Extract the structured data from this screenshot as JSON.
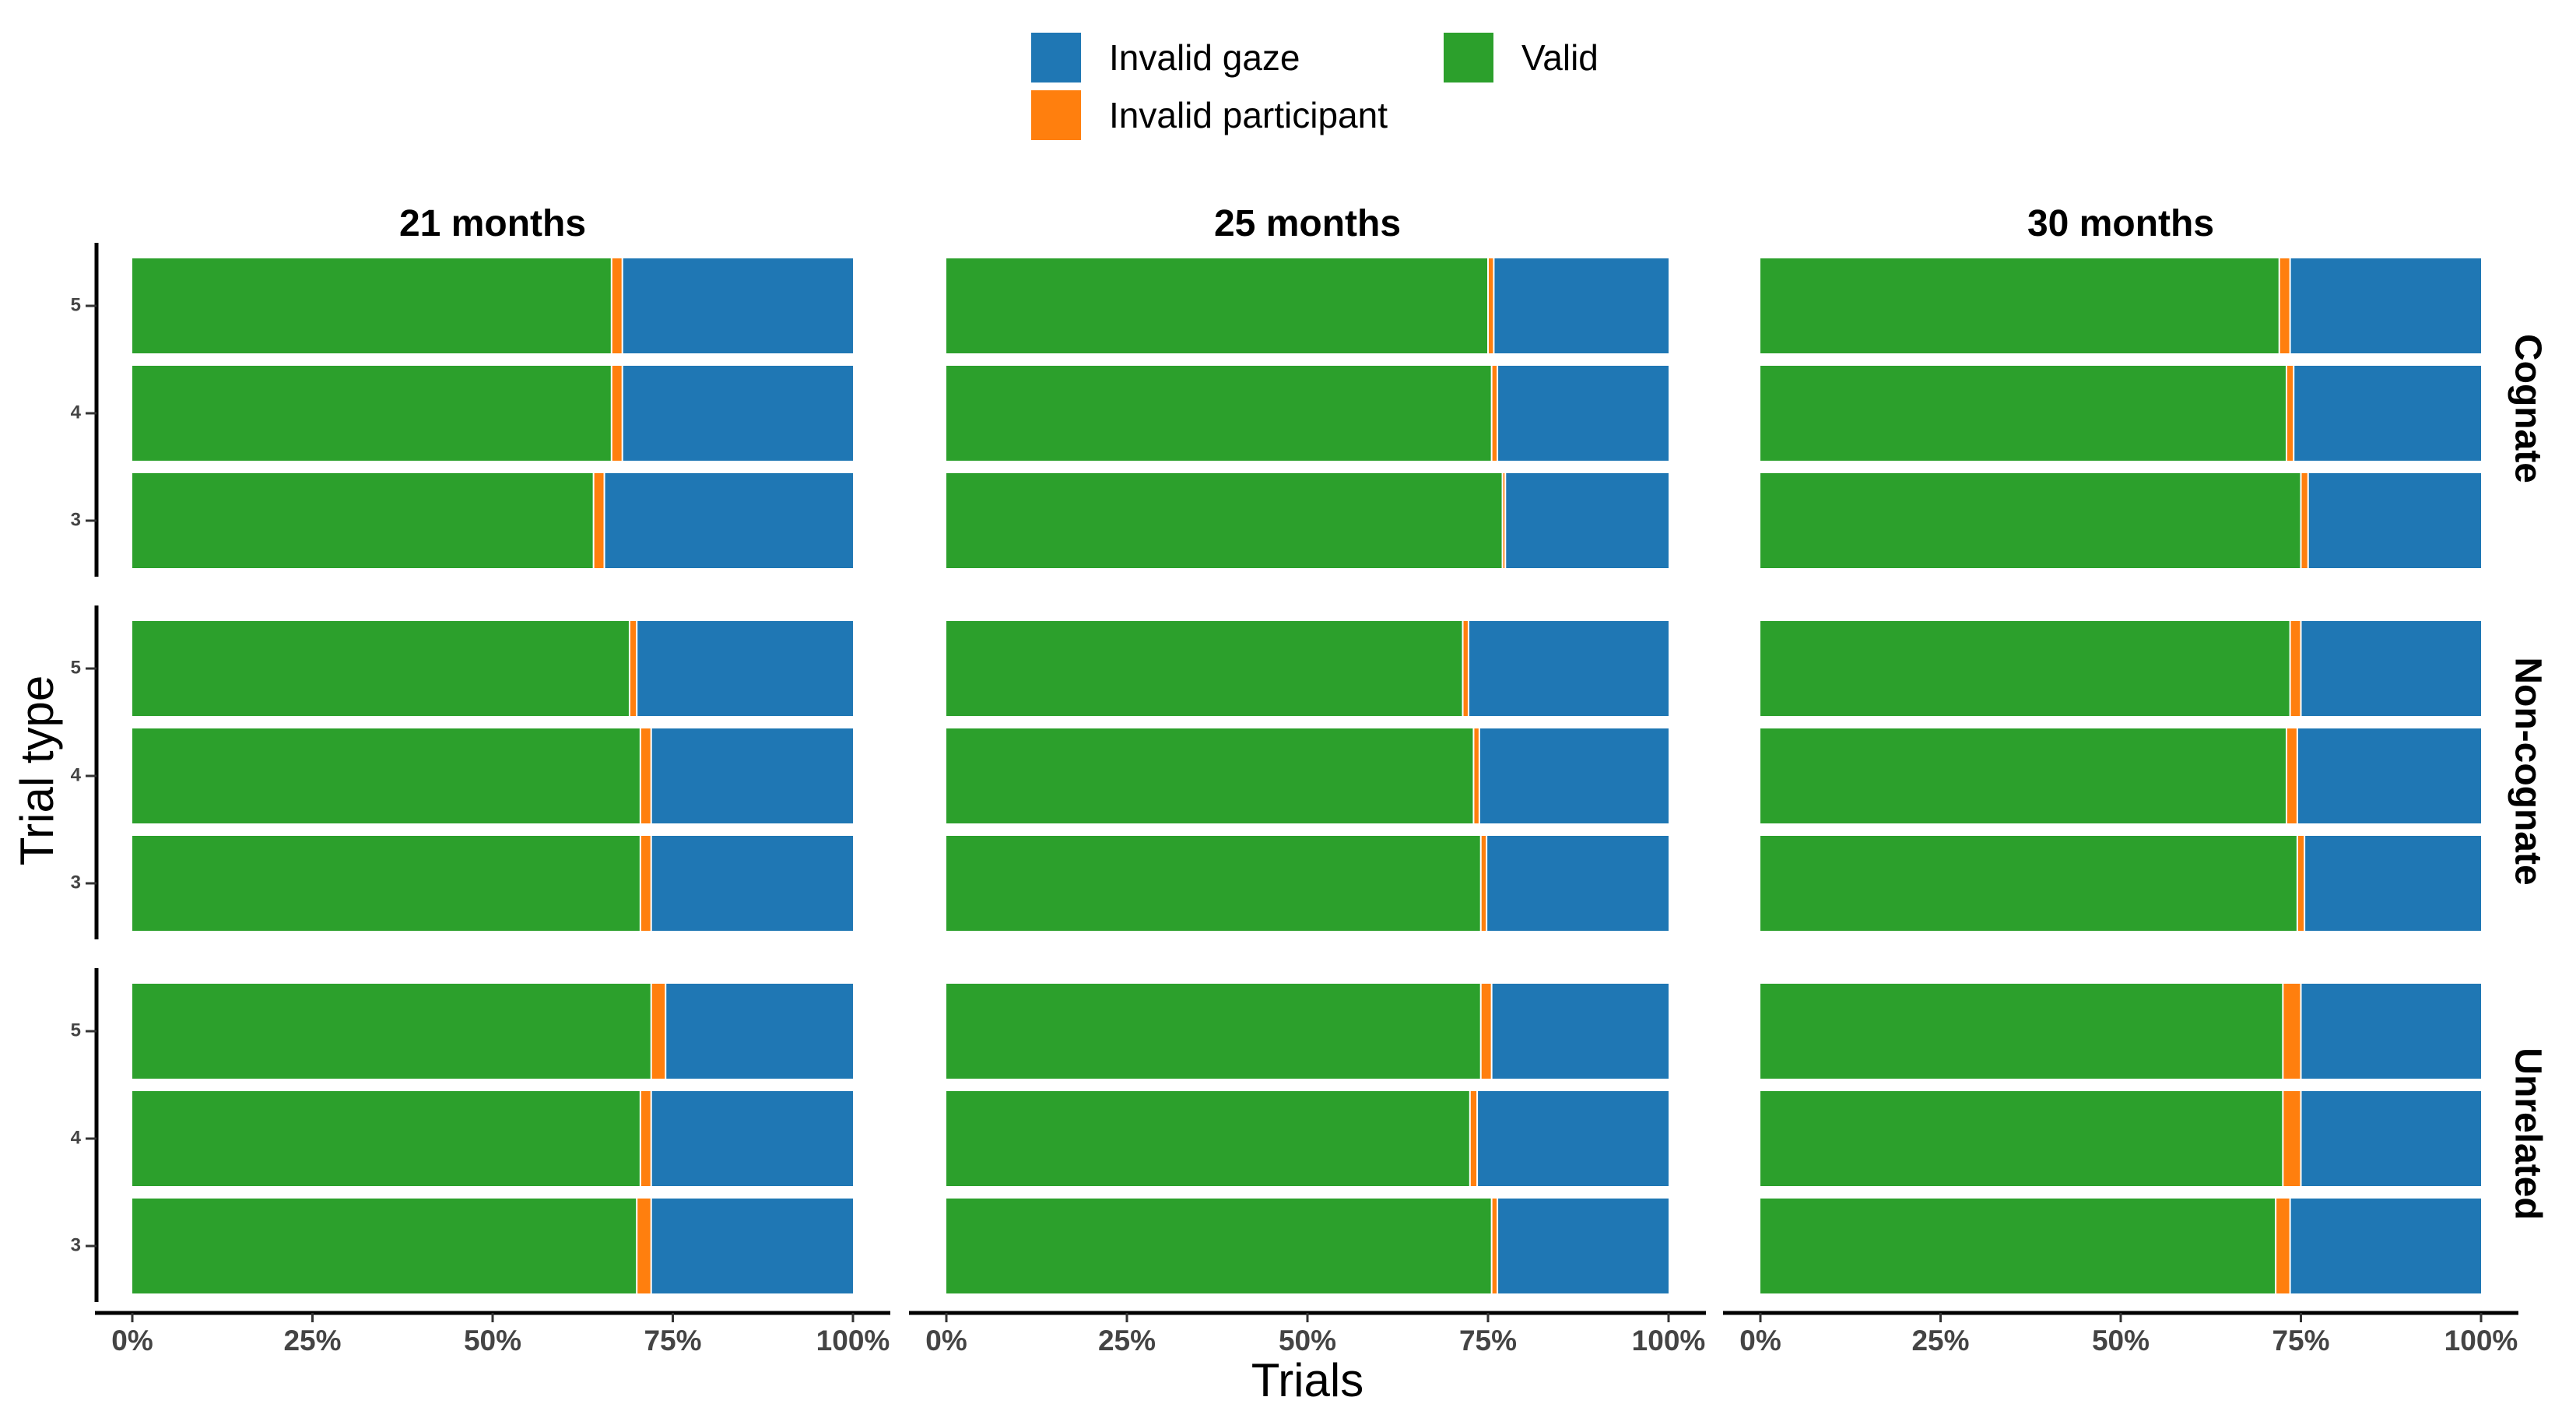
{
  "colors": {
    "valid": "#2ca02c",
    "invalid_participant": "#ff7f0e",
    "invalid_gaze": "#1f77b4"
  },
  "legend": {
    "invalid_gaze": "Invalid gaze",
    "invalid_participant": "Invalid participant",
    "valid": "Valid"
  },
  "chart_data": {
    "type": "bar",
    "orientation": "horizontal-stacked-percent",
    "xlabel": "Trials",
    "ylabel": "Trial type",
    "x_ticks": [
      "0%",
      "25%",
      "50%",
      "75%",
      "100%"
    ],
    "xlim": [
      0,
      100
    ],
    "facet_columns": [
      "21 months",
      "25 months",
      "30 months"
    ],
    "facet_rows": [
      "Cognate",
      "Non-cognate",
      "Unrelated"
    ],
    "categories": [
      "5",
      "4",
      "3"
    ],
    "legend_position": "top",
    "grid": false,
    "series_order": [
      "Valid",
      "Invalid participant",
      "Invalid gaze"
    ],
    "panels": [
      {
        "column": "21 months",
        "row": "Cognate",
        "bars": [
          {
            "category": "5",
            "valid": 66.5,
            "invalid_participant": 1.5,
            "invalid_gaze": 32.0
          },
          {
            "category": "4",
            "valid": 66.5,
            "invalid_participant": 1.5,
            "invalid_gaze": 32.0
          },
          {
            "category": "3",
            "valid": 64.0,
            "invalid_participant": 1.5,
            "invalid_gaze": 34.5
          }
        ]
      },
      {
        "column": "25 months",
        "row": "Cognate",
        "bars": [
          {
            "category": "5",
            "valid": 75.0,
            "invalid_participant": 0.8,
            "invalid_gaze": 24.2
          },
          {
            "category": "4",
            "valid": 75.5,
            "invalid_participant": 0.8,
            "invalid_gaze": 23.7
          },
          {
            "category": "3",
            "valid": 77.0,
            "invalid_participant": 0.4,
            "invalid_gaze": 22.6
          }
        ]
      },
      {
        "column": "30 months",
        "row": "Cognate",
        "bars": [
          {
            "category": "5",
            "valid": 72.0,
            "invalid_participant": 1.5,
            "invalid_gaze": 26.5
          },
          {
            "category": "4",
            "valid": 73.0,
            "invalid_participant": 1.0,
            "invalid_gaze": 26.0
          },
          {
            "category": "3",
            "valid": 75.0,
            "invalid_participant": 1.0,
            "invalid_gaze": 24.0
          }
        ]
      },
      {
        "column": "21 months",
        "row": "Non-cognate",
        "bars": [
          {
            "category": "5",
            "valid": 69.0,
            "invalid_participant": 1.0,
            "invalid_gaze": 30.0
          },
          {
            "category": "4",
            "valid": 70.5,
            "invalid_participant": 1.5,
            "invalid_gaze": 28.0
          },
          {
            "category": "3",
            "valid": 70.5,
            "invalid_participant": 1.5,
            "invalid_gaze": 28.0
          }
        ]
      },
      {
        "column": "25 months",
        "row": "Non-cognate",
        "bars": [
          {
            "category": "5",
            "valid": 71.5,
            "invalid_participant": 0.8,
            "invalid_gaze": 27.7
          },
          {
            "category": "4",
            "valid": 73.0,
            "invalid_participant": 0.8,
            "invalid_gaze": 26.2
          },
          {
            "category": "3",
            "valid": 74.0,
            "invalid_participant": 0.8,
            "invalid_gaze": 25.2
          }
        ]
      },
      {
        "column": "30 months",
        "row": "Non-cognate",
        "bars": [
          {
            "category": "5",
            "valid": 73.5,
            "invalid_participant": 1.5,
            "invalid_gaze": 25.0
          },
          {
            "category": "4",
            "valid": 73.0,
            "invalid_participant": 1.5,
            "invalid_gaze": 25.5
          },
          {
            "category": "3",
            "valid": 74.5,
            "invalid_participant": 1.0,
            "invalid_gaze": 24.5
          }
        ]
      },
      {
        "column": "21 months",
        "row": "Unrelated",
        "bars": [
          {
            "category": "5",
            "valid": 72.0,
            "invalid_participant": 2.0,
            "invalid_gaze": 26.0
          },
          {
            "category": "4",
            "valid": 70.5,
            "invalid_participant": 1.5,
            "invalid_gaze": 28.0
          },
          {
            "category": "3",
            "valid": 70.0,
            "invalid_participant": 2.0,
            "invalid_gaze": 28.0
          }
        ]
      },
      {
        "column": "25 months",
        "row": "Unrelated",
        "bars": [
          {
            "category": "5",
            "valid": 74.0,
            "invalid_participant": 1.5,
            "invalid_gaze": 24.5
          },
          {
            "category": "4",
            "valid": 72.5,
            "invalid_participant": 1.0,
            "invalid_gaze": 26.5
          },
          {
            "category": "3",
            "valid": 75.5,
            "invalid_participant": 0.8,
            "invalid_gaze": 23.7
          }
        ]
      },
      {
        "column": "30 months",
        "row": "Unrelated",
        "bars": [
          {
            "category": "5",
            "valid": 72.5,
            "invalid_participant": 2.5,
            "invalid_gaze": 25.0
          },
          {
            "category": "4",
            "valid": 72.5,
            "invalid_participant": 2.5,
            "invalid_gaze": 25.0
          },
          {
            "category": "3",
            "valid": 71.5,
            "invalid_participant": 2.0,
            "invalid_gaze": 26.5
          }
        ]
      }
    ]
  }
}
